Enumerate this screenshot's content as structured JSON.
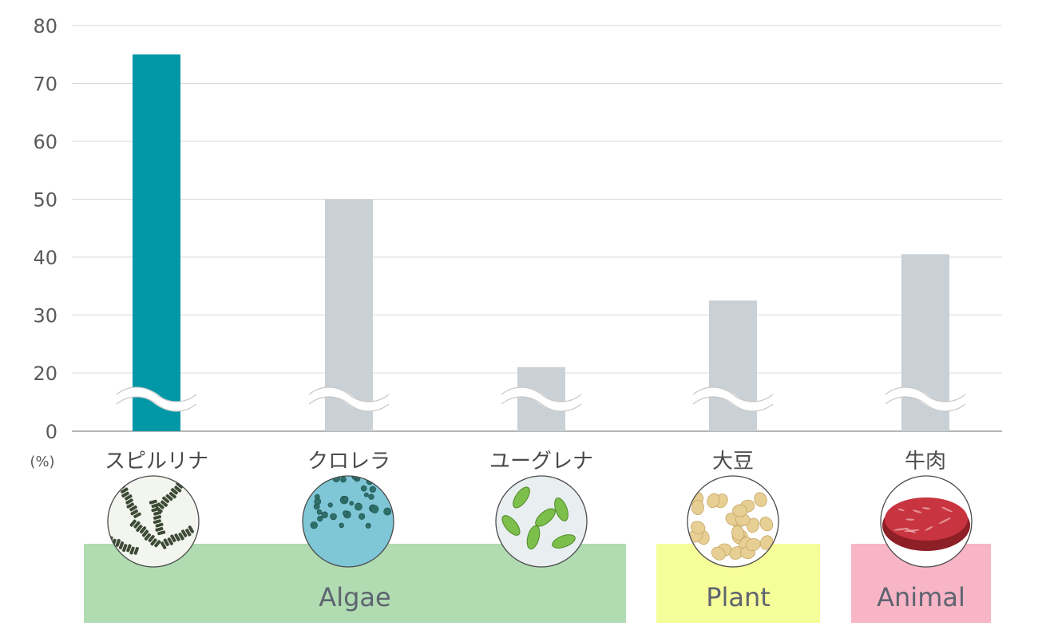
{
  "chart_data": {
    "type": "bar",
    "title": "",
    "xlabel": "",
    "ylabel": "",
    "unit_label": "(%)",
    "ylim": [
      0,
      80
    ],
    "yticks": [
      0,
      20,
      30,
      40,
      50,
      60,
      70,
      80
    ],
    "axis_break": "between 0 and 20",
    "grid": true,
    "categories": [
      "スピルリナ",
      "クロレラ",
      "ユーグレナ",
      "大豆",
      "牛肉"
    ],
    "values": [
      75,
      50,
      21,
      32.5,
      40.5
    ],
    "highlight_index": 0,
    "colors": {
      "highlight": "#0097a7",
      "bar": "#c9d1d6",
      "grid": "#d9d9d9",
      "axis": "#9e9e9e"
    },
    "groups": [
      {
        "label": "Algae",
        "categories": [
          0,
          1,
          2
        ],
        "color": "#b1dcb2"
      },
      {
        "label": "Plant",
        "categories": [
          3
        ],
        "color": "#f6fe99"
      },
      {
        "label": "Animal",
        "categories": [
          4
        ],
        "color": "#f8b5c6"
      }
    ],
    "category_images": [
      "spirulina-microscope-photo",
      "chlorella-microscope-photo",
      "euglena-microscope-photo",
      "soybeans-photo",
      "beef-photo"
    ]
  }
}
